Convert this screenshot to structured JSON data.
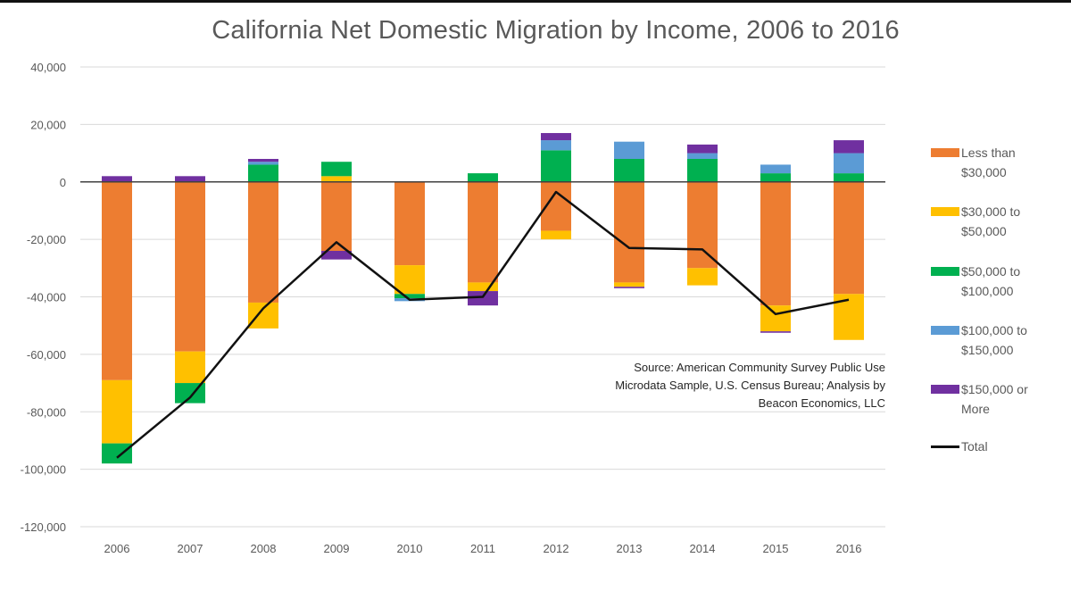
{
  "chart_data": {
    "type": "bar",
    "stacked": true,
    "title": "California Net Domestic Migration by Income, 2006 to 2016",
    "xlabel": "",
    "ylabel": "",
    "ylim": [
      -120000,
      40000
    ],
    "yticks": [
      40000,
      20000,
      0,
      -20000,
      -40000,
      -60000,
      -80000,
      -100000,
      -120000
    ],
    "ytick_labels": [
      "40,000",
      "20,000",
      "0",
      "-20,000",
      "-40,000",
      "-60,000",
      "-80,000",
      "-100,000",
      "-120,000"
    ],
    "grid": true,
    "legend_position": "right",
    "categories": [
      "2006",
      "2007",
      "2008",
      "2009",
      "2010",
      "2011",
      "2012",
      "2013",
      "2014",
      "2015",
      "2016"
    ],
    "series": [
      {
        "name": "Less than $30,000",
        "legend": [
          "Less than",
          "$30,000"
        ],
        "color": "#ED7D31",
        "values": [
          -69000,
          -59000,
          -42000,
          -24000,
          -29000,
          -35000,
          -17000,
          -35000,
          -30000,
          -43000,
          -39000
        ]
      },
      {
        "name": "$30,000 to $50,000",
        "legend": [
          "$30,000 to",
          "$50,000"
        ],
        "color": "#FFC000",
        "values": [
          -22000,
          -11000,
          -9000,
          2000,
          -10000,
          -3000,
          -3000,
          -1500,
          -6000,
          -9000,
          -16000
        ]
      },
      {
        "name": "$50,000 to $100,000",
        "legend": [
          "$50,000 to",
          "$100,000"
        ],
        "color": "#00B050",
        "values": [
          -7000,
          -7000,
          6000,
          5000,
          -1500,
          3000,
          11000,
          8000,
          8000,
          3000,
          3000
        ]
      },
      {
        "name": "$100,000 to $150,000",
        "legend": [
          "$100,000 to",
          "$150,000"
        ],
        "color": "#5B9BD5",
        "values": [
          0,
          0,
          1000,
          0,
          -1000,
          0,
          3500,
          6000,
          2000,
          3000,
          7000
        ]
      },
      {
        "name": "$150,000 or More",
        "legend": [
          "$150,000 or",
          "More"
        ],
        "color": "#7030A0",
        "values": [
          2000,
          2000,
          1000,
          -3000,
          0,
          -5000,
          2500,
          -500,
          3000,
          -500,
          4500
        ]
      }
    ],
    "total": {
      "name": "Total",
      "color": "#111111",
      "values": [
        -96000,
        -75000,
        -44000,
        -21000,
        -41000,
        -40000,
        -3500,
        -23000,
        -23500,
        -46000,
        -41000
      ]
    },
    "annotation": [
      "Source: American Community Survey Public Use",
      "Microdata Sample, U.S. Census Bureau; Analysis by",
      "Beacon Economics, LLC"
    ]
  }
}
